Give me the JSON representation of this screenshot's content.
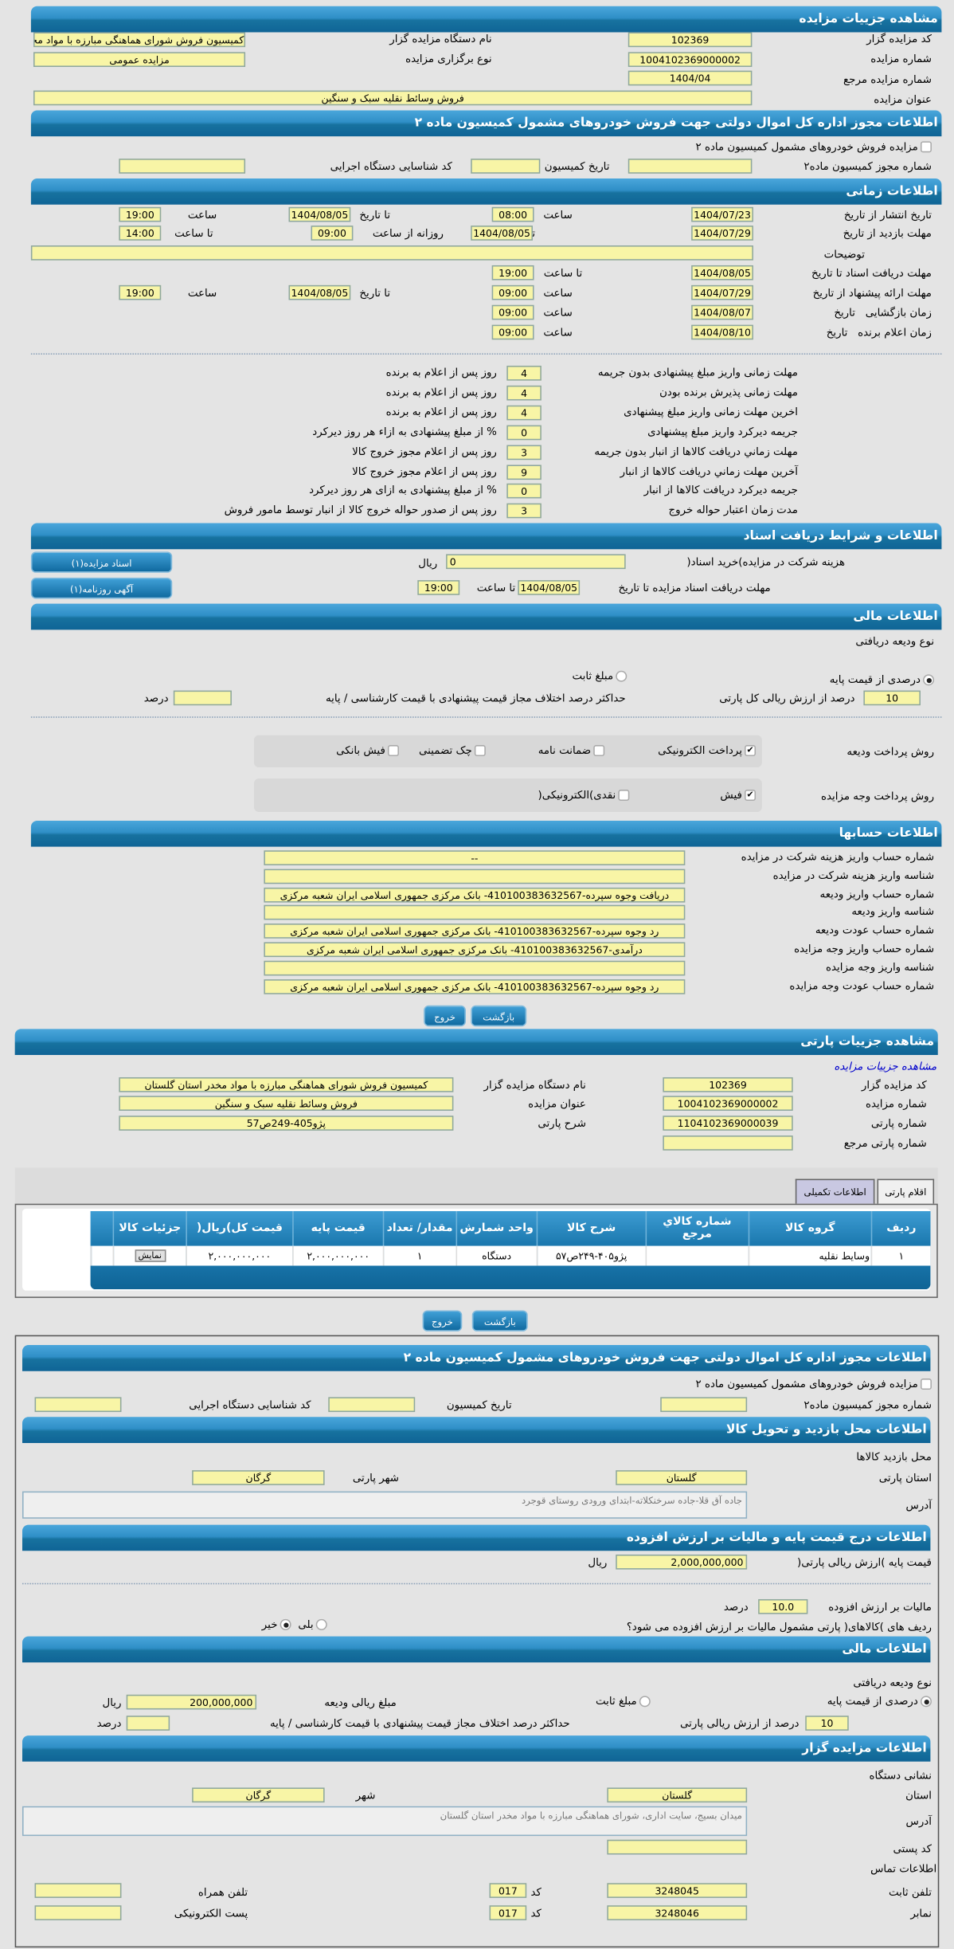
{
  "auction": {
    "title": "مشاهده جزییات مزایده",
    "code_label": "کد مزایده گزار",
    "code": "102369",
    "org_label": "نام دستگاه مزایده گزار",
    "org": "کمیسیون فروش شورای هماهنگی مبارزه با مواد مخدر استان گلستان",
    "number_label": "شماره مزایده",
    "number": "1004102369000002",
    "type_label": "نوع برگزاری مزایده",
    "type": "مزایده عمومی",
    "ref_label": "شماره مزایده مرجع",
    "ref": "1404/04",
    "subject_label": "عنوان مزایده",
    "subject": "فروش وسائط نقلیه سبک و سنگین"
  },
  "permit": {
    "title": "اطلاعات مجوز اداره کل اموال دولتی جهت فروش خودروهای مشمول کمیسیون ماده ۲",
    "checkbox_label": "مزایده فروش خودروهای مشمول کمیسیون ماده ۲",
    "number_label": "شماره مجوز کمیسیون ماده۲",
    "date_label": "تاریخ کمیسیون",
    "exec_label": "کد شناسایی دستگاه اجرایی"
  },
  "timing": {
    "title": "اطلاعات زمانی",
    "publish_label": "تاریخ انتشار",
    "from_date": "از تاریخ",
    "to_date": "تا تاریخ",
    "hour": "ساعت",
    "to_hour": "تا ساعت",
    "daily_from": "روزانه از ساعت",
    "date": "تاریخ",
    "publish_from": "1404/07/23",
    "publish_from_time": "08:00",
    "publish_to": "1404/08/05",
    "publish_to_time": "19:00",
    "visit_label": "مهلت بازدید",
    "visit_from": "1404/07/29",
    "visit_to": "1404/08/05",
    "visit_daily_from": "09:00",
    "visit_daily_to": "14:00",
    "desc_label": "توضیحات",
    "desc": "",
    "docs_label": "مهلت دریافت اسناد",
    "docs_to": "1404/08/05",
    "docs_to_time": "19:00",
    "offer_label": "مهلت ارائه پیشنهاد",
    "offer_from": "1404/07/29",
    "offer_from_time": "09:00",
    "offer_to": "1404/08/05",
    "offer_to_time": "19:00",
    "open_label": "زمان بازگشایی",
    "open_date": "1404/08/07",
    "open_time": "09:00",
    "winner_label": "زمان اعلام برنده",
    "winner_date": "1404/08/10",
    "winner_time": "09:00"
  },
  "penalties": [
    {
      "label": "مهلت زمانی واریز مبلغ پیشنهادی بدون جریمه",
      "value": "4",
      "suffix": "روز پس از اعلام به برنده"
    },
    {
      "label": "مهلت زمانی پذیرش برنده بودن",
      "value": "4",
      "suffix": "روز پس از اعلام به برنده"
    },
    {
      "label": "اخرین مهلت زمانی واریز مبلغ پیشنهادی",
      "value": "4",
      "suffix": "روز پس از اعلام به برنده"
    },
    {
      "label": "جریمه دیرکرد واریز مبلغ پیشنهادی",
      "value": "0",
      "suffix": "% از مبلغ پیشنهادی به ازاء هر روز دیرکرد"
    },
    {
      "label": "مهلت زماني دریافت کالاها از انبار بدون جریمه",
      "value": "3",
      "suffix": "روز پس از اعلام مجوز خروج کالا"
    },
    {
      "label": "آخرین مهلت زماني دریافت کالاها از انبار",
      "value": "9",
      "suffix": "روز پس از اعلام مجوز خروج کالا"
    },
    {
      "label": "جریمه دیرکرد دریافت کالاها از انبار",
      "value": "0",
      "suffix": "% از مبلغ پیشنهادی به ازای هر روز دیرکرد"
    },
    {
      "label": "مدت زمان اعتبار حواله خروج",
      "value": "3",
      "suffix": "روز پس از صدور حواله خروج کالا از انبار توسط مامور فروش"
    }
  ],
  "documents": {
    "title": "اطلاعات و شرایط دریافت اسناد",
    "fee_label": "هزینه شرکت در مزایده)خرید اسناد(",
    "fee": "0",
    "rial": "ریال",
    "deadline_label": "مهلت دریافت اسناد مزایده تا تاریخ",
    "deadline_date": "1404/08/05",
    "to_hour": "تا ساعت",
    "deadline_time": "19:00",
    "docs_button": "اسناد مزایده(۱)",
    "ad_button": "آگهی روزنامه(۱)"
  },
  "finance": {
    "title": "اطلاعات مالی",
    "deposit_type_label": "نوع ودیعه دریافتی",
    "percent_option": "درصدی از قیمت پایه",
    "fixed_option": "مبلغ ثابت",
    "percent_value": "10",
    "percent_label": "درصد از ارزش ریالی کل پارتی",
    "max_diff_label": "حداکثر درصد اختلاف مجاز قیمت پیشنهادی با قیمت کارشناسی / پایه",
    "max_diff": "",
    "percent_unit": "درصد",
    "deposit_method_label": "روش پرداخت ودیعه",
    "deposit_methods": [
      {
        "label": "پرداخت الکترونیکی",
        "checked": true
      },
      {
        "label": "ضمانت نامه",
        "checked": false
      },
      {
        "label": "چک تضمینی",
        "checked": false
      },
      {
        "label": "فیش بانکی",
        "checked": false
      }
    ],
    "payment_method_label": "روش پرداخت وجه مزایده",
    "payment_methods": [
      {
        "label": "فیش",
        "checked": true
      },
      {
        "label": "نقدی)الکترونیکی(",
        "checked": false
      }
    ]
  },
  "accounts": {
    "title": "اطلاعات حسابها",
    "rows": [
      {
        "label": "شماره حساب واریز هزینه شرکت در مزایده",
        "value": "--"
      },
      {
        "label": "شناسه واریز هزینه شرکت در مزایده",
        "value": ""
      },
      {
        "label": "شماره حساب واریز ودیعه",
        "value": "دریافت وجوه سپرده-410100383632567- بانک مرکزی جمهوری اسلامی ایران شعبه مرکزی"
      },
      {
        "label": "شناسه واریز ودیعه",
        "value": ""
      },
      {
        "label": "شماره حساب عودت ودیعه",
        "value": "رد وجوه سپرده-410100383632567- بانک مرکزی جمهوری اسلامی ایران شعبه مرکزی"
      },
      {
        "label": "شماره حساب واریز وجه مزایده",
        "value": "درآمدی-410100383632567- بانک مرکزی جمهوری اسلامی ایران شعبه مرکزی"
      },
      {
        "label": "شناسه واریز وجه مزایده",
        "value": ""
      },
      {
        "label": "شماره حساب عودت وجه مزایده",
        "value": "رد وجوه سپرده-410100383632567- بانک مرکزی جمهوری اسلامی ایران شعبه مرکزی"
      }
    ]
  },
  "buttons": {
    "back": "بازگشت",
    "exit": "خروج"
  },
  "lot": {
    "title": "مشاهده جزییات پارتی",
    "link": "مشاهده جزییات مزایده",
    "code_label": "کد مزایده گزار",
    "code": "102369",
    "org_label": "نام دستگاه مزایده گزار",
    "org": "کمیسیون فروش شورای هماهنگی مبارزه با مواد مخدر استان گلستان",
    "number_label": "شماره مزایده",
    "number": "1004102369000002",
    "subject_label": "عنوان مزایده",
    "subject": "فروش وسائط نقلیه سبک و سنگین",
    "lot_number_label": "شماره پارتی",
    "lot_number": "1104102369000039",
    "lot_desc_label": "شرح پارتی",
    "lot_desc": "پژو405-249ص57",
    "lot_ref_label": "شماره پارتی مرجع",
    "lot_ref": ""
  },
  "tabs": [
    {
      "label": "اقلام پارتی",
      "active": true
    },
    {
      "label": "اطلاعات تکمیلی",
      "active": false
    }
  ],
  "items_table": {
    "columns": [
      "ردیف",
      "گروه کالا",
      "شماره کالاي مرجع",
      "شرح کالا",
      "واحد شمارش",
      "مقدار/ تعداد",
      "قیمت پایه",
      "قیمت کل)ریال(",
      "جزئیات کالا"
    ],
    "rows": [
      [
        "۱",
        "وسایط نقلیه",
        "",
        "پژو۴۰۵-۲۴۹ص۵۷",
        "دستگاه",
        "۱",
        "۲,۰۰۰,۰۰۰,۰۰۰",
        "۲,۰۰۰,۰۰۰,۰۰۰",
        "نمایش"
      ]
    ]
  },
  "detail": {
    "permit_title": "اطلاعات مجوز اداره کل اموال دولتی جهت فروش خودروهای مشمول کمیسیون ماده ۲",
    "location_title": "اطلاعات محل بازدید و تحویل کالا",
    "visit_place_label": "محل بازدید کالاها",
    "province_label": "استان پارتی",
    "province": "گلستان",
    "city_label": "شهر پارتی",
    "city": "گرگان",
    "address_label": "آدرس",
    "address": "جاده آق قلا-جاده سرخنکلاته-ابتدای ورودی روستای قوجرد",
    "price_title": "اطلاعات درج قیمت پایه و مالیات بر ارزش افزوده",
    "base_price_label": "قیمت پایه )ارزش ریالی پارتی(",
    "base_price": "2,000,000,000",
    "rial": "ریال",
    "vat_label": "مالیات بر ارزش افزوده",
    "vat": "10.0",
    "percent_unit": "درصد",
    "vat_question": "ردیف های )کالاهای( پارتی مشمول مالیات بر ارزش افزوده می شود؟",
    "yes": "بلی",
    "no": "خیر",
    "vat_answer": "no",
    "finance_title": "اطلاعات مالی",
    "deposit_type_label": "نوع ودیعه دریافتی",
    "percent_option": "درصدی از قیمت پایه",
    "fixed_option": "مبلغ ثابت",
    "deposit_amount_label": "مبلغ ریالی ودیعه",
    "deposit_amount": "200,000,000",
    "percent_value": "10",
    "percent_label": "درصد از ارزش ریالی پارتی",
    "max_diff_label": "حداکثر درصد اختلاف مجاز قیمت پیشنهادی با قیمت کارشناسی / پایه",
    "max_diff": "",
    "org_title": "اطلاعات مزایده گزار",
    "org_address_label": "نشانی دستگاه",
    "org_province_label": "استان",
    "org_province": "گلستان",
    "org_city_label": "شهر",
    "org_city": "گرگان",
    "org_address": "میدان بسیج، سایت اداری، شورای هماهنگی مبارزه با مواد مخدر استان گلستان",
    "postal_label": "کد پستی",
    "postal": "",
    "contact_label": "اطلاعات تماس",
    "phone_label": "تلفن ثابت",
    "phone": "3248045",
    "code_label": "کد",
    "phone_code": "017",
    "mobile_label": "تلفن همراه",
    "mobile": "",
    "fax_label": "نمابر",
    "fax": "3248046",
    "fax_code": "017",
    "email_label": "پست الکترونیکی",
    "email": ""
  },
  "colors": {
    "header": "#1f7fb8",
    "field": "#f8f5a6",
    "background": "#e4e4e4",
    "link": "#0000cc"
  }
}
